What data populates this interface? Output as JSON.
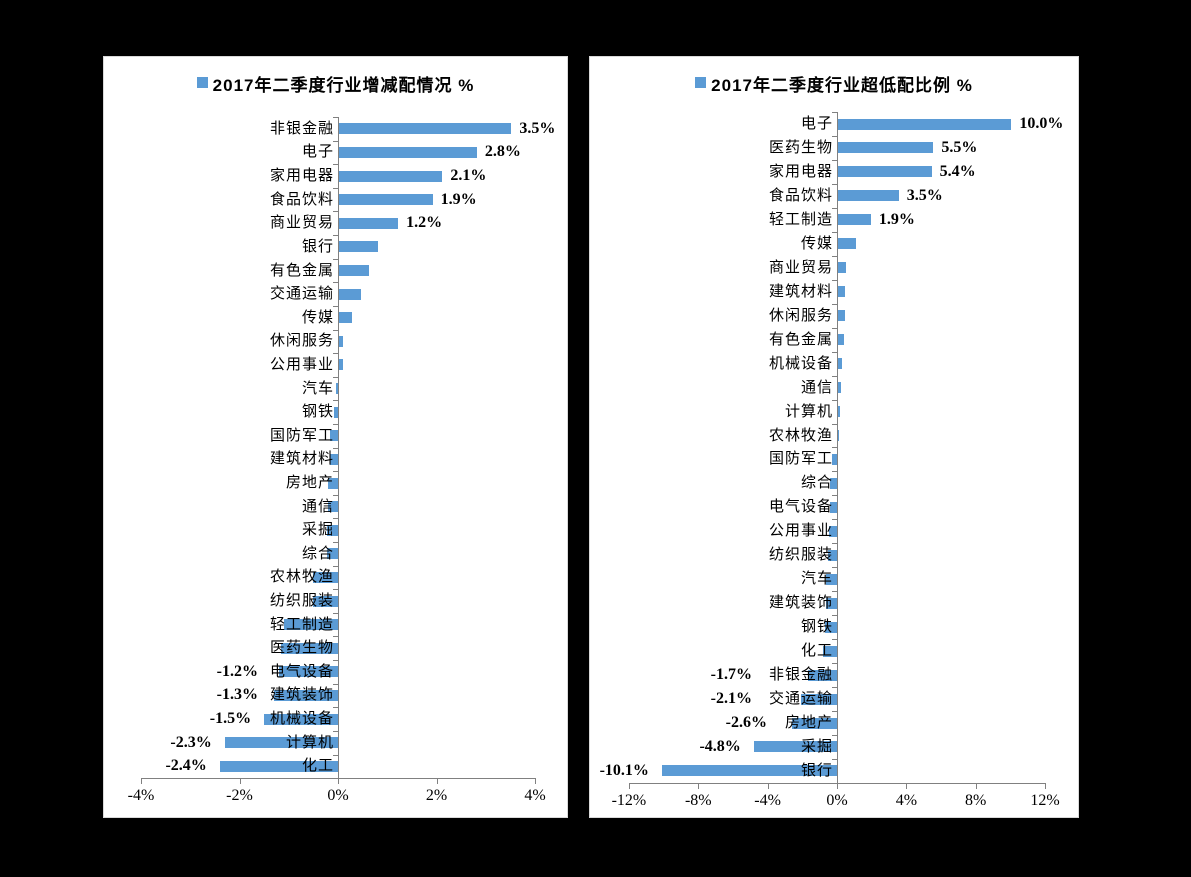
{
  "page": {
    "background": "#000000",
    "panel_background": "#ffffff"
  },
  "colors": {
    "bar": "#5b9bd5",
    "axis": "#808080",
    "text": "#000000"
  },
  "chart_data": [
    {
      "type": "bar",
      "orientation": "horizontal",
      "title": "2017年二季度行业增减配情况 %",
      "legend_position": "top-inline-with-title",
      "grid": false,
      "xlim": [
        -4,
        4
      ],
      "x_tick_values": [
        -4,
        -2,
        0,
        2,
        4
      ],
      "x_ticks": [
        "-4%",
        "-2%",
        "0%",
        "2%",
        "4%"
      ],
      "categories": [
        "非银金融",
        "电子",
        "家用电器",
        "食品饮料",
        "商业贸易",
        "银行",
        "有色金属",
        "交通运输",
        "传媒",
        "休闲服务",
        "公用事业",
        "汽车",
        "钢铁",
        "国防军工",
        "建筑材料",
        "房地产",
        "通信",
        "采掘",
        "综合",
        "农林牧渔",
        "纺织服装",
        "轻工制造",
        "医药生物",
        "电气设备",
        "建筑装饰",
        "机械设备",
        "计算机",
        "化工"
      ],
      "values": [
        3.5,
        2.8,
        2.1,
        1.9,
        1.2,
        0.8,
        0.6,
        0.45,
        0.27,
        0.08,
        0.09,
        -0.05,
        -0.08,
        -0.16,
        -0.17,
        -0.2,
        -0.21,
        -0.22,
        -0.23,
        -0.5,
        -0.5,
        -1.1,
        -1.15,
        -1.2,
        -1.3,
        -1.5,
        -2.3,
        -2.4
      ],
      "data_labels": [
        "3.5%",
        "2.8%",
        "2.1%",
        "1.9%",
        "1.2%",
        "",
        "",
        "",
        "",
        "",
        "",
        "",
        "",
        "",
        "",
        "",
        "",
        "",
        "",
        "",
        "",
        "",
        "",
        "-1.2%",
        "-1.3%",
        "-1.5%",
        "-2.3%",
        "-2.4%"
      ]
    },
    {
      "type": "bar",
      "orientation": "horizontal",
      "title": "2017年二季度行业超低配比例 %",
      "legend_position": "top-inline-with-title",
      "grid": false,
      "xlim": [
        -12,
        12
      ],
      "x_tick_values": [
        -12,
        -8,
        -4,
        0,
        4,
        8,
        12
      ],
      "x_ticks": [
        "-12%",
        "-8%",
        "-4%",
        "0%",
        "4%",
        "8%",
        "12%"
      ],
      "categories": [
        "电子",
        "医药生物",
        "家用电器",
        "食品饮料",
        "轻工制造",
        "传媒",
        "商业贸易",
        "建筑材料",
        "休闲服务",
        "有色金属",
        "机械设备",
        "通信",
        "计算机",
        "农林牧渔",
        "国防军工",
        "综合",
        "电气设备",
        "公用事业",
        "纺织服装",
        "汽车",
        "建筑装饰",
        "钢铁",
        "化工",
        "非银金融",
        "交通运输",
        "房地产",
        "采掘",
        "银行"
      ],
      "values": [
        10.0,
        5.5,
        5.4,
        3.5,
        1.9,
        1.05,
        0.43,
        0.4,
        0.38,
        0.35,
        0.2,
        0.17,
        0.1,
        0.02,
        -0.3,
        -0.38,
        -0.42,
        -0.47,
        -0.55,
        -0.62,
        -0.66,
        -0.7,
        -0.82,
        -1.7,
        -2.1,
        -2.6,
        -4.8,
        -10.1
      ],
      "data_labels": [
        "10.0%",
        "5.5%",
        "5.4%",
        "3.5%",
        "1.9%",
        "",
        "",
        "",
        "",
        "",
        "",
        "",
        "",
        "",
        "",
        "",
        "",
        "",
        "",
        "",
        "",
        "",
        "",
        "-1.7%",
        "-2.1%",
        "-2.6%",
        "-4.8%",
        "-10.1%"
      ]
    }
  ]
}
